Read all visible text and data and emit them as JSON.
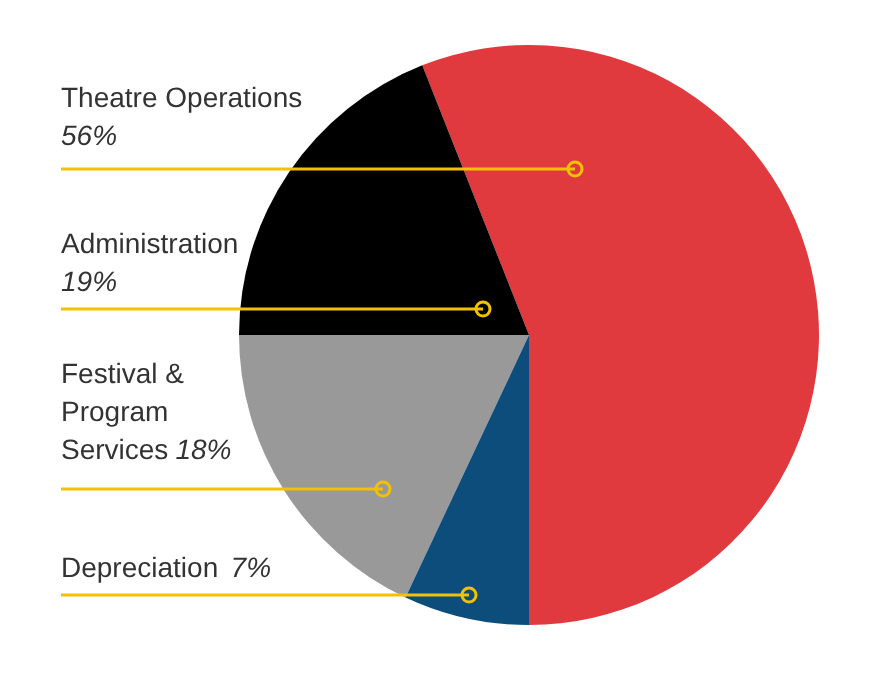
{
  "chart_data": {
    "type": "pie",
    "categories": [
      "Theatre Operations",
      "Administration",
      "Festival & Program Services",
      "Depreciation"
    ],
    "values": [
      56,
      19,
      18,
      7
    ],
    "colors": [
      "#e03a3e",
      "#000000",
      "#999999",
      "#0c4d7c"
    ],
    "value_labels": [
      "56%",
      "19%",
      "18%",
      "7%"
    ]
  }
}
